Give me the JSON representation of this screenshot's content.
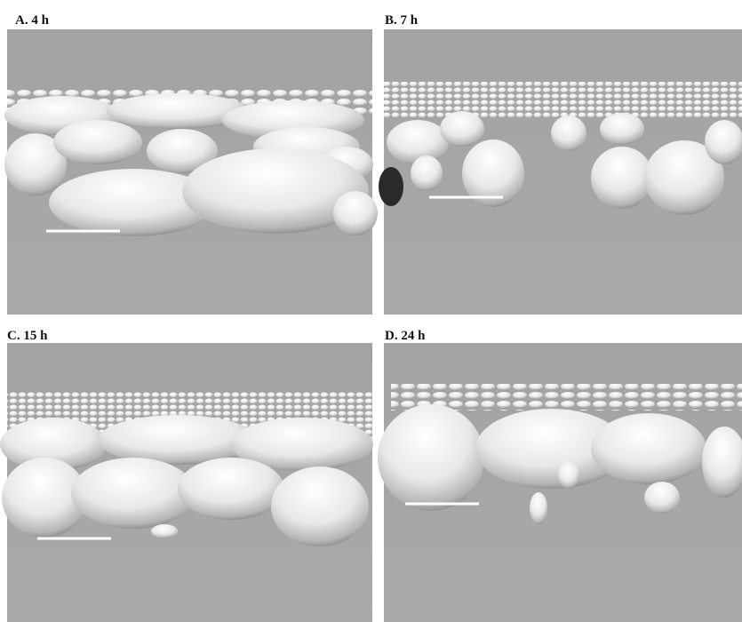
{
  "panels": [
    {
      "label": "A. 4 h"
    },
    {
      "label": "B. 7 h"
    },
    {
      "label": "C. 15 h"
    },
    {
      "label": "D. 24 h"
    }
  ]
}
